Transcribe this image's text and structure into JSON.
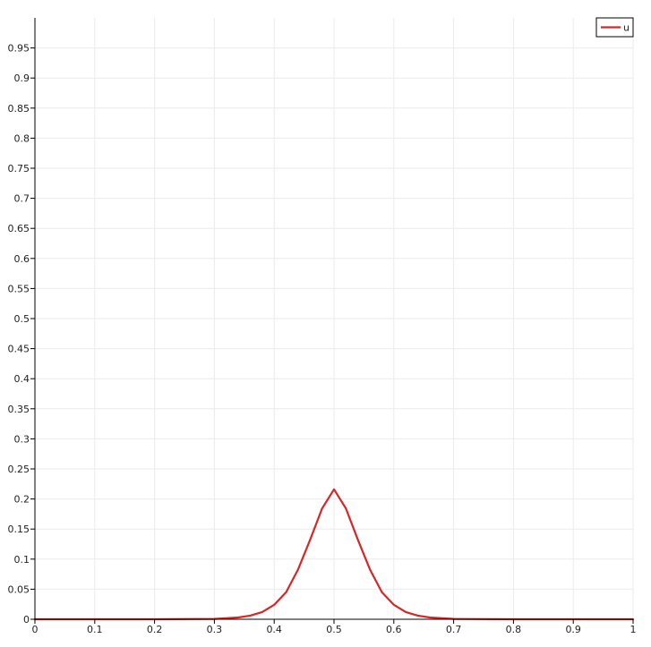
{
  "chart_data": {
    "type": "line",
    "title": "",
    "xlabel": "",
    "ylabel": "",
    "xlim": [
      0,
      1
    ],
    "ylim": [
      0,
      1
    ],
    "grid": true,
    "legend_position": "top-right",
    "x_ticks": [
      0,
      0.1,
      0.2,
      0.3,
      0.4,
      0.5,
      0.6,
      0.7,
      0.8,
      0.9,
      1
    ],
    "x_tick_labels": [
      "0",
      "0.1",
      "0.2",
      "0.3",
      "0.4",
      "0.5",
      "0.6",
      "0.7",
      "0.8",
      "0.9",
      "1"
    ],
    "y_ticks": [
      0,
      0.05,
      0.1,
      0.15,
      0.2,
      0.25,
      0.3,
      0.35,
      0.4,
      0.45,
      0.5,
      0.55,
      0.6,
      0.65,
      0.7,
      0.75,
      0.8,
      0.85,
      0.9,
      0.95
    ],
    "y_tick_labels": [
      "0",
      "0.05",
      "0.1",
      "0.15",
      "0.2",
      "0.25",
      "0.3",
      "0.35",
      "0.4",
      "0.45",
      "0.5",
      "0.55",
      "0.6",
      "0.65",
      "0.7",
      "0.75",
      "0.8",
      "0.85",
      "0.9",
      "0.95"
    ],
    "series": [
      {
        "name": "u",
        "color": "#d62728",
        "x": [
          0,
          0.1,
          0.2,
          0.3,
          0.34,
          0.36,
          0.38,
          0.4,
          0.42,
          0.44,
          0.46,
          0.48,
          0.5,
          0.52,
          0.54,
          0.56,
          0.58,
          0.6,
          0.62,
          0.64,
          0.66,
          0.7,
          0.8,
          0.9,
          1
        ],
        "y": [
          0,
          0,
          0,
          0.0005,
          0.003,
          0.006,
          0.012,
          0.024,
          0.045,
          0.083,
          0.132,
          0.184,
          0.216,
          0.184,
          0.132,
          0.083,
          0.045,
          0.024,
          0.012,
          0.006,
          0.003,
          0.0005,
          0,
          0,
          0
        ]
      }
    ]
  }
}
